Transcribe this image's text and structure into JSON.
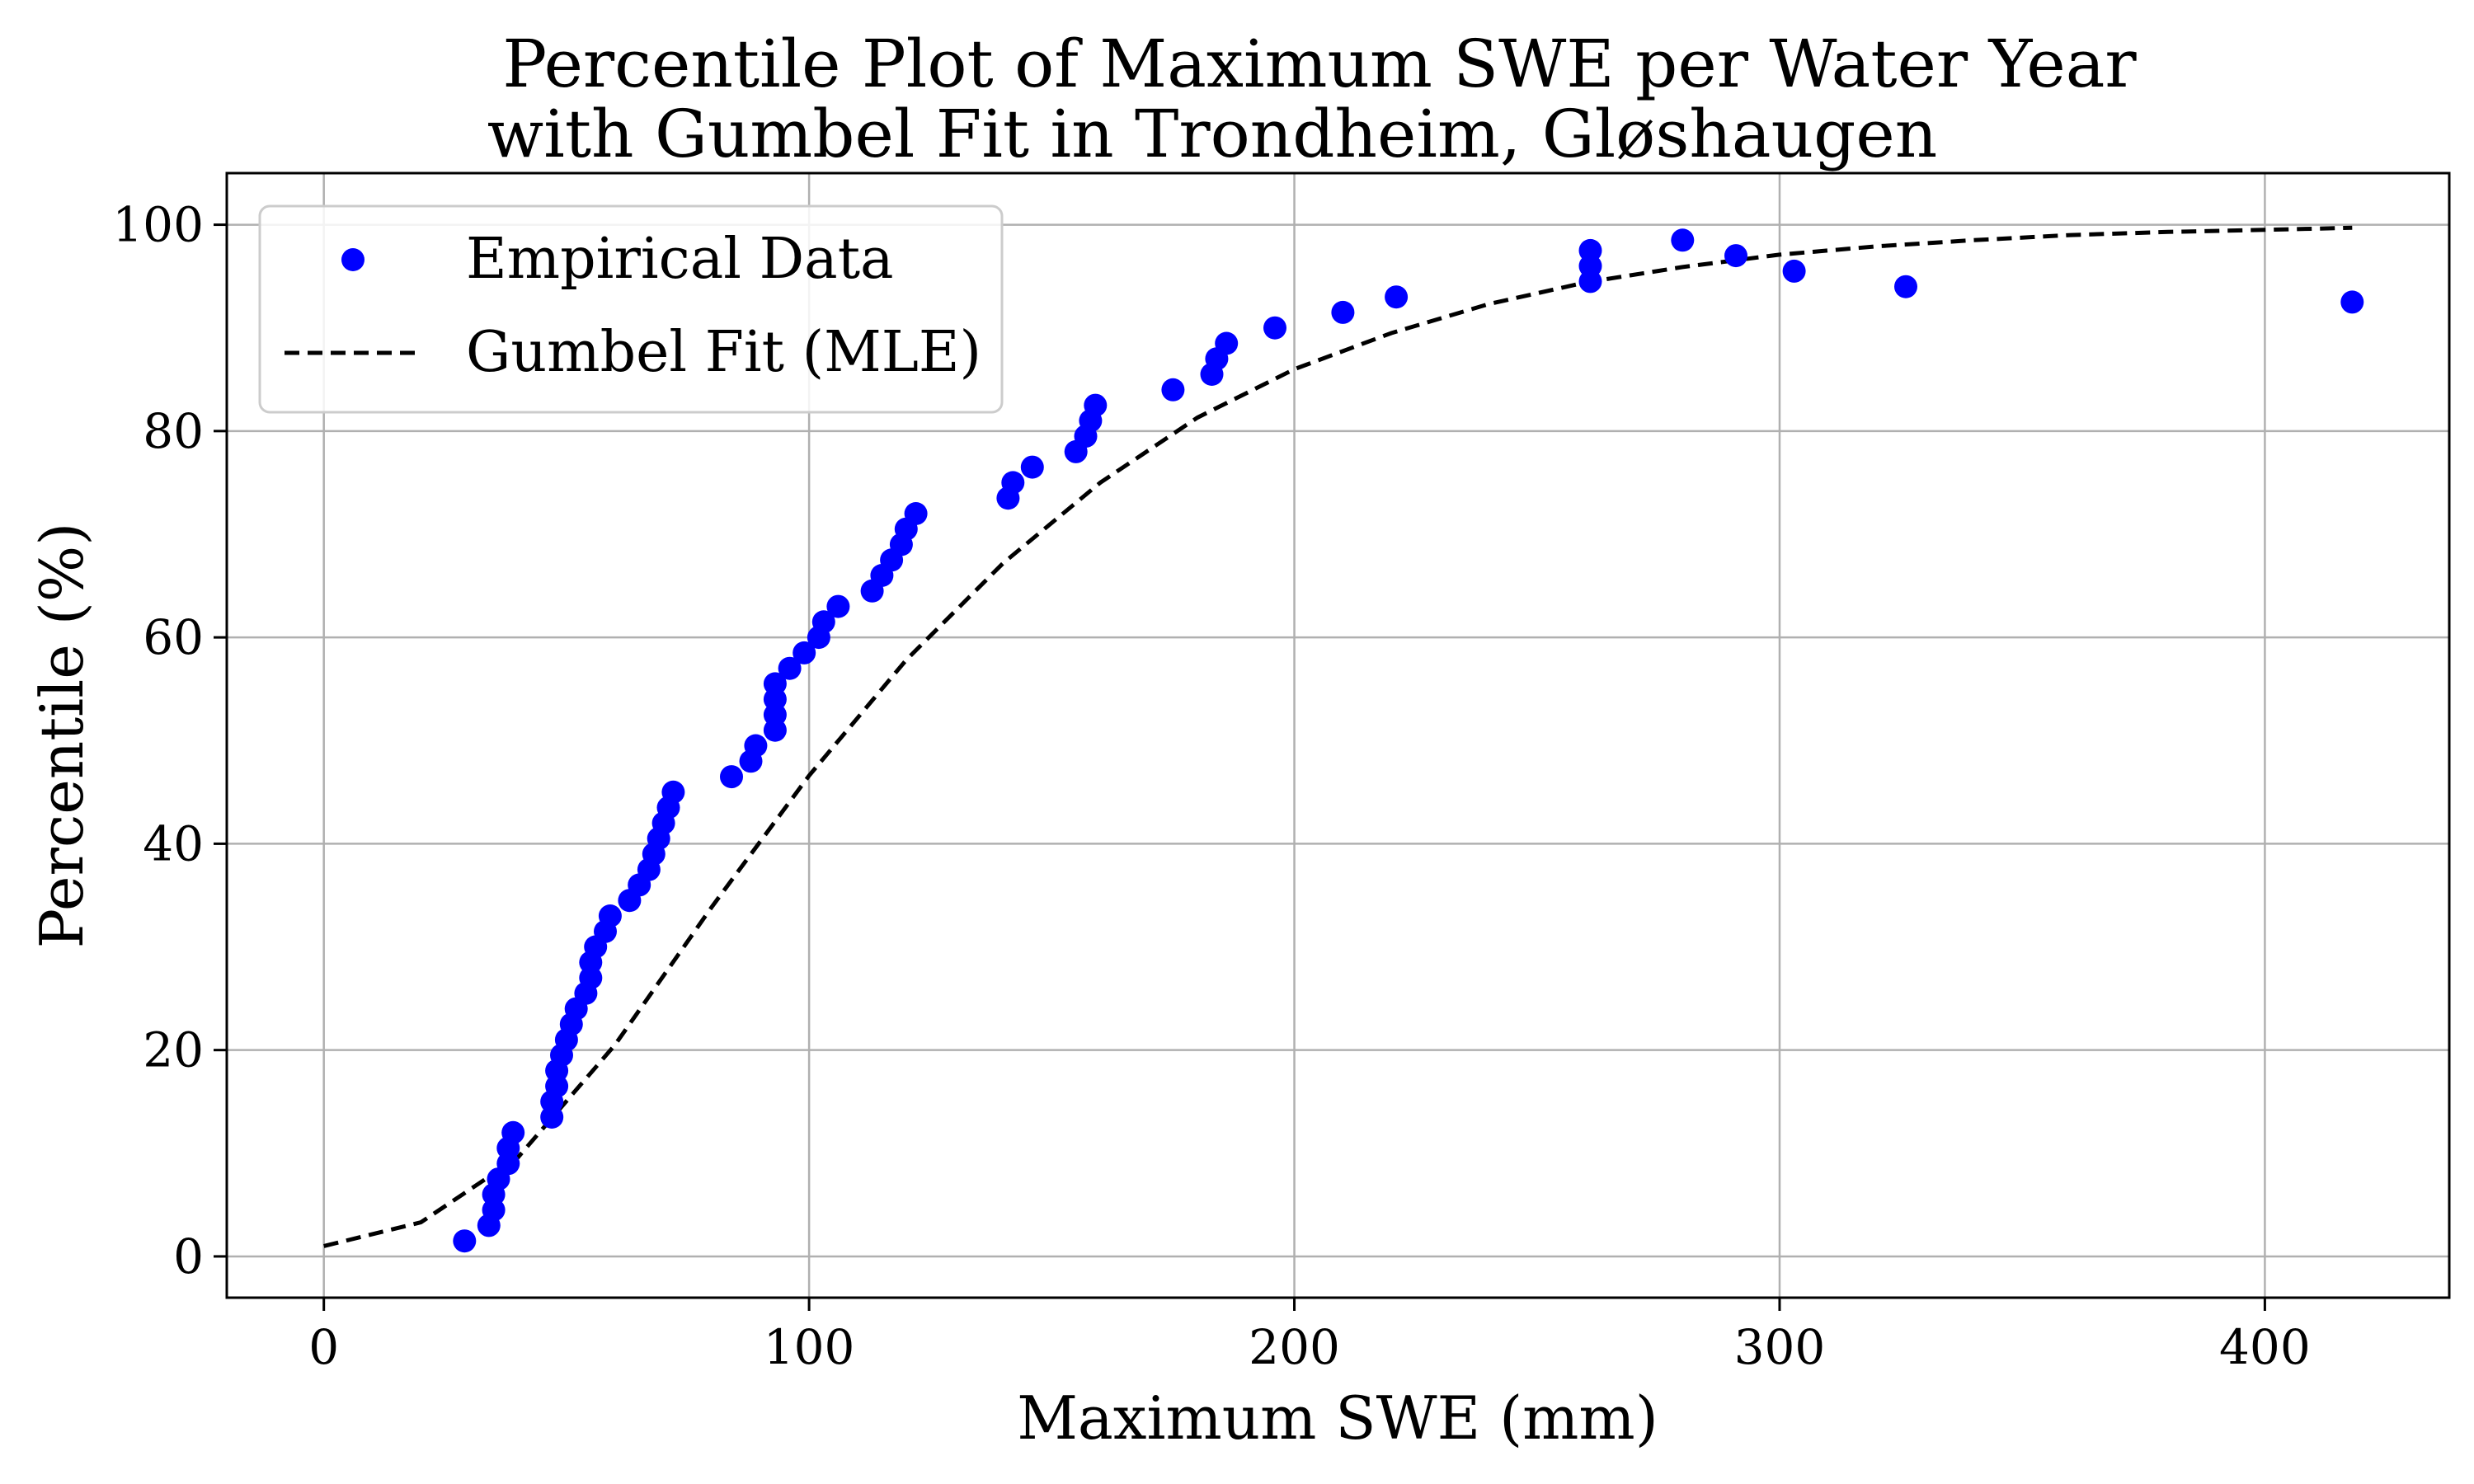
{
  "chart_data": {
    "type": "scatter",
    "title_line1": "Percentile Plot of Maximum SWE per Water Year",
    "title_line2": "with Gumbel Fit in Trondheim, Gløshaugen",
    "xlabel": "Maximum SWE (mm)",
    "ylabel": "Percentile (%)",
    "xlim": [
      -20,
      438
    ],
    "ylim": [
      -4,
      105
    ],
    "xticks": [
      0,
      100,
      200,
      300,
      400
    ],
    "yticks": [
      0,
      20,
      40,
      60,
      80,
      100
    ],
    "grid": true,
    "legend_position": "top-left",
    "colors": {
      "empirical": "#0000ff",
      "fit": "#000000",
      "grid": "#b0b0b0"
    },
    "series": [
      {
        "name": "Empirical Data",
        "kind": "scatter",
        "x": [
          29,
          34,
          35,
          35,
          36,
          38,
          38,
          39,
          47,
          47,
          48,
          48,
          49,
          50,
          51,
          52,
          54,
          55,
          55,
          56,
          58,
          59,
          63,
          65,
          67,
          68,
          69,
          70,
          71,
          72,
          84,
          88,
          89,
          93,
          93,
          93,
          93,
          96,
          99,
          102,
          103,
          106,
          113,
          115,
          117,
          119,
          120,
          122,
          141,
          142,
          146,
          155,
          157,
          158,
          159,
          175,
          183,
          184,
          186,
          196,
          210,
          221,
          261,
          261,
          261,
          280,
          291,
          303,
          326,
          418
        ],
        "y": [
          1.5,
          3.0,
          4.5,
          6.0,
          7.5,
          9.0,
          10.5,
          12.0,
          13.5,
          15.0,
          16.5,
          18.0,
          19.5,
          21.0,
          22.5,
          24.0,
          25.5,
          27.0,
          28.5,
          30.0,
          31.5,
          33.0,
          34.5,
          36.0,
          37.5,
          39.0,
          40.5,
          42.0,
          43.5,
          45.0,
          46.5,
          48.0,
          49.5,
          51.0,
          52.5,
          54.0,
          55.5,
          57.0,
          58.5,
          60.0,
          61.5,
          63.0,
          64.5,
          66.0,
          67.5,
          69.0,
          70.5,
          72.0,
          73.5,
          75.0,
          76.5,
          78.0,
          79.5,
          81.0,
          82.5,
          84.0,
          85.5,
          87.0,
          88.5,
          90.0,
          91.5,
          93.0,
          94.5,
          96.0,
          97.5,
          98.5,
          97.0,
          95.5,
          94.0,
          92.5
        ]
      },
      {
        "name": "Gumbel Fit (MLE)",
        "kind": "line",
        "style": "dashed",
        "x": [
          0,
          20,
          40,
          60,
          80,
          100,
          120,
          140,
          160,
          180,
          200,
          220,
          240,
          260,
          280,
          300,
          320,
          340,
          360,
          380,
          400,
          418
        ],
        "y": [
          1.0,
          3.3,
          9.6,
          20.5,
          33.9,
          46.6,
          57.8,
          67.2,
          75.0,
          81.3,
          86.0,
          89.5,
          92.3,
          94.4,
          95.9,
          97.1,
          97.9,
          98.5,
          99.0,
          99.3,
          99.5,
          99.7
        ]
      }
    ]
  }
}
